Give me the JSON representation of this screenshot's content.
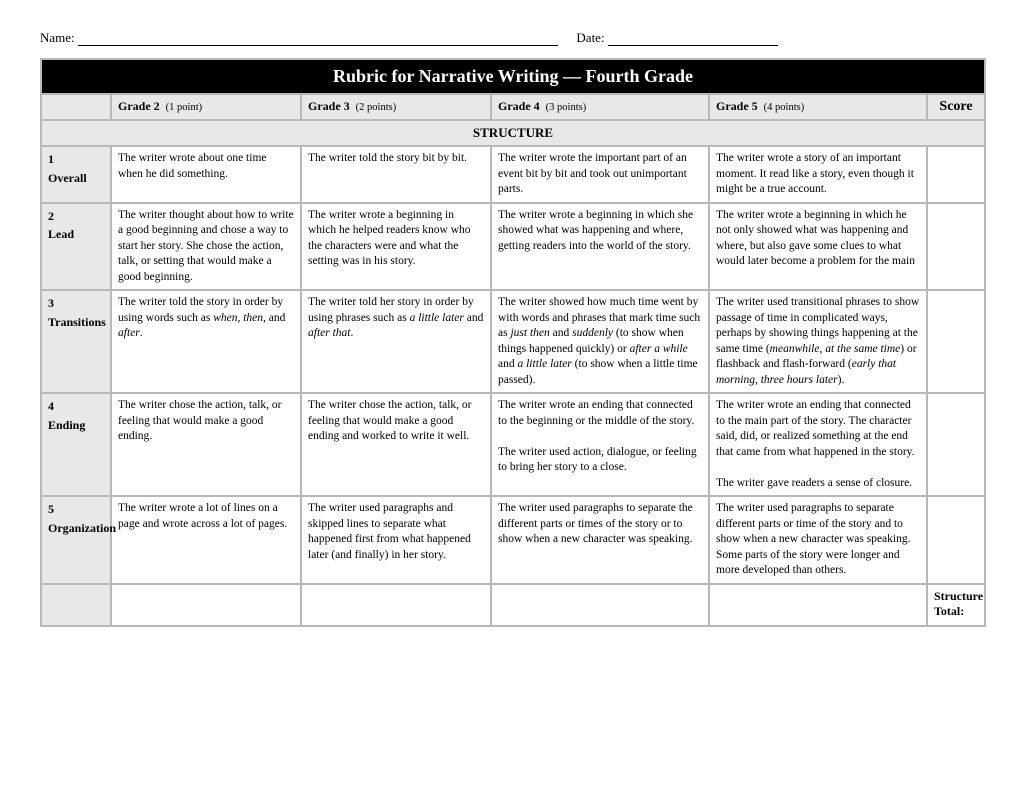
{
  "meta": {
    "nameLabel": "Name:",
    "dateLabel": "Date:"
  },
  "title": "Rubric for Narrative Writing — Fourth Grade",
  "columns": {
    "c0": {
      "grade": "Grade 2",
      "pts": "(1 point)"
    },
    "c1": {
      "grade": "Grade 3",
      "pts": "(2 points)"
    },
    "c2": {
      "grade": "Grade 4",
      "pts": "(3 points)"
    },
    "c3": {
      "grade": "Grade 5",
      "pts": "(4 points)"
    },
    "scoreLabel": "Score"
  },
  "sectionLabel": "STRUCTURE",
  "rows": {
    "r1": {
      "num": "1",
      "name": "Overall",
      "g2": "The writer wrote about one time when he did something.",
      "g3": "The writer told the story bit by bit.",
      "g4": "The writer wrote the important part of an event bit by bit and took out unimportant parts.",
      "g5": "The writer wrote a story of an important moment. It read like a story, even though it might be a true account."
    },
    "r2": {
      "num": "2",
      "name": "Lead",
      "g2": "The writer thought about how to write a good beginning and chose a way to start her story. She chose the action, talk, or setting that would make a good beginning.",
      "g3": "The writer wrote a beginning in which he helped readers know who the characters were and what the setting was in his story.",
      "g4": "The writer wrote a beginning in which she showed what was happening and where, getting readers into the world of the story.",
      "g5": "The writer wrote a beginning in which he not only showed what was happening and where, but also gave some clues to what would later become a problem for the main"
    },
    "r3": {
      "num": "3",
      "name": "Transitions",
      "g2": "The writer told the story in order by using words such as <em>when</em>, <em>then</em>, and <em>after</em>.",
      "g3": "The writer told her story in order by using phrases such as <em>a little later</em> and <em>after that</em>.",
      "g4": "The writer showed how much time went by with words and phrases that mark time such as <em>just then</em> and <em>suddenly</em> (to show when things happened quickly) or <em>after a while</em> and <em>a little later</em> (to show when a little time passed).",
      "g5": "The writer used transitional phrases to show passage of time in complicated ways, perhaps by showing things happening at the same time (<em>meanwhile</em>, <em>at the same time</em>) or flashback and flash-forward (<em>early that morning</em>, <em>three hours later</em>)."
    },
    "r4": {
      "num": "4",
      "name": "Ending",
      "g2": "The writer chose the action, talk, or feeling that would make a good ending.",
      "g3": "The writer chose the action, talk, or feeling that would make a good ending and worked to write it well.",
      "g4": "The writer wrote an ending that connected to the beginning or the middle of the story.<br><br>The writer used action, dialogue, or feeling to bring her story to a close.",
      "g5": "The writer wrote an ending that connected to the main part of the story. The character said, did, or realized something at the end that came from what happened in the story.<br><br>The writer gave readers a sense of closure."
    },
    "r5": {
      "num": "5",
      "name": "Organization",
      "g2": "The writer wrote a lot of lines on a page and wrote across a lot of pages.",
      "g3": "The writer used paragraphs and skipped lines to separate what happened first from what happened later (and finally) in her story.",
      "g4": "The writer used paragraphs to separate the different parts or times of the story or to show when a new character was speaking.",
      "g5": "The writer used paragraphs to separate different parts or time of the story and to show when a new character was speaking. Some parts of the story were longer and more developed than others."
    }
  },
  "totalLabel": "Structure Total:",
  "style": {
    "titleBg": "#000000",
    "titleFg": "#ffffff",
    "headBg": "#e8e8e8",
    "borderColor": "#b8b8b8",
    "fontBody": 11.5,
    "fontTitle": 18
  }
}
